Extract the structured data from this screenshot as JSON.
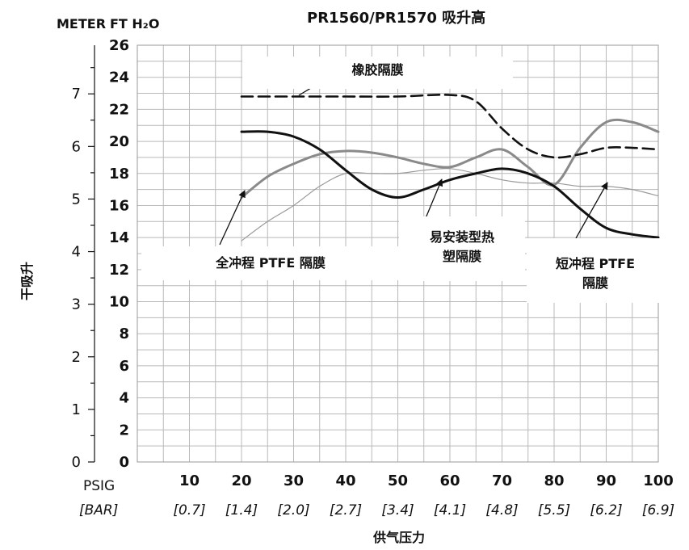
{
  "chart_data": {
    "type": "line",
    "title": "PR1560/PR1570 吸升高",
    "ylabel": "干吸升",
    "xlabel": "供气压力",
    "y_left_header": "METER",
    "y_right_header": "FT H₂O",
    "x_header_psig": "PSIG",
    "x_header_bar": "[BAR]",
    "x_ticks_psig": [
      "10",
      "20",
      "30",
      "40",
      "50",
      "60",
      "70",
      "80",
      "90",
      "100"
    ],
    "x_ticks_bar": [
      "[0.7]",
      "[1.4]",
      "[2.0]",
      "[2.7]",
      "[3.4]",
      "[4.1]",
      "[4.8]",
      "[5.5]",
      "[6.2]",
      "[6.9]"
    ],
    "y_ft_ticks": [
      "0",
      "2",
      "4",
      "6",
      "8",
      "10",
      "12",
      "14",
      "16",
      "18",
      "20",
      "22",
      "24",
      "26"
    ],
    "y_meter_ticks": [
      "0",
      "1",
      "2",
      "3",
      "4",
      "5",
      "6",
      "7"
    ],
    "xlim": [
      0,
      100
    ],
    "ylim_ft": [
      0,
      26
    ],
    "grid": true,
    "series": [
      {
        "name": "橡胶隔膜",
        "style": "dashed",
        "color": "#111111",
        "x": [
          20,
          30,
          40,
          50,
          60,
          65,
          70,
          75,
          80,
          85,
          90,
          95,
          100
        ],
        "y": [
          22.8,
          22.8,
          22.8,
          22.8,
          22.9,
          22.5,
          20.8,
          19.5,
          19.0,
          19.2,
          19.6,
          19.6,
          19.5
        ]
      },
      {
        "name": "全冲程 PTFE 隔膜",
        "style": "solid",
        "color": "#8a8a8a",
        "x": [
          20,
          25,
          30,
          35,
          40,
          45,
          50,
          55,
          60,
          65,
          70,
          75,
          80,
          85,
          90,
          95,
          100
        ],
        "y": [
          16.5,
          17.8,
          18.6,
          19.2,
          19.4,
          19.3,
          19.0,
          18.6,
          18.4,
          19.0,
          19.5,
          18.4,
          17.3,
          19.6,
          21.2,
          21.2,
          20.6
        ]
      },
      {
        "name": "易安装型热塑隔膜",
        "style": "solid",
        "color": "#111111",
        "x": [
          20,
          25,
          30,
          35,
          40,
          45,
          50,
          55,
          60,
          65,
          70,
          75,
          80,
          85,
          90,
          95,
          100
        ],
        "y": [
          20.6,
          20.6,
          20.3,
          19.5,
          18.2,
          17.0,
          16.5,
          17.0,
          17.6,
          18.0,
          18.3,
          18.0,
          17.2,
          15.8,
          14.6,
          14.2,
          14.0
        ]
      },
      {
        "name": "短冲程 PTFE 隔膜",
        "style": "thin",
        "color": "#9a9a9a",
        "x": [
          20,
          25,
          30,
          35,
          40,
          45,
          50,
          55,
          60,
          65,
          70,
          75,
          80,
          85,
          90,
          95,
          100
        ],
        "y": [
          13.8,
          15.0,
          16.0,
          17.2,
          18.0,
          18.0,
          18.0,
          18.2,
          18.3,
          18.0,
          17.6,
          17.4,
          17.4,
          17.2,
          17.2,
          17.0,
          16.6
        ]
      }
    ],
    "annotations": [
      {
        "text": "橡胶隔膜"
      },
      {
        "text": "全冲程 PTFE 隔膜"
      },
      {
        "text": "易安装型热塑隔膜",
        "lines": [
          "易安装型热",
          "塑隔膜"
        ]
      },
      {
        "text": "短冲程 PTFE 隔膜",
        "lines": [
          "短冲程 PTFE",
          "隔膜"
        ]
      }
    ]
  }
}
